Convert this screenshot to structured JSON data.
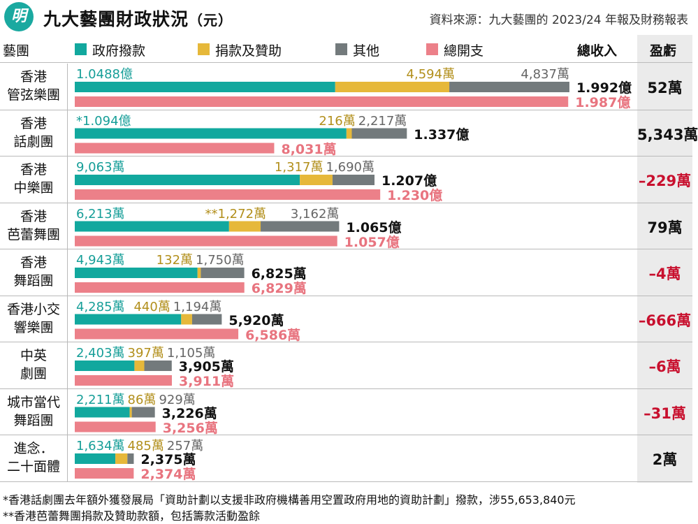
{
  "header": {
    "logo_glyph": "明",
    "title": "九大藝團財政狀況",
    "title_unit": "（元）",
    "source": "資料來源：九大藝團的 2023/24 年報及財務報表"
  },
  "columns": {
    "troupe": "藝團",
    "income_total": "總收入",
    "balance": "盈虧"
  },
  "colors": {
    "gov": "#12a89e",
    "don": "#e6b83a",
    "oth": "#737a7c",
    "exp": "#ec8089",
    "negative": "#c8102e"
  },
  "chart_data": {
    "type": "bar",
    "unit": "元",
    "legend": [
      {
        "key": "gov",
        "name": "政府撥款"
      },
      {
        "key": "don",
        "name": "捐款及贊助"
      },
      {
        "key": "oth",
        "name": "其他"
      },
      {
        "key": "exp",
        "name": "總開支"
      }
    ],
    "rows": [
      {
        "name_lines": [
          "香港",
          "管弦樂團"
        ],
        "gov": 104880000,
        "don": 45940000,
        "oth": 48370000,
        "income": 199200000,
        "expense": 198700000,
        "gov_label": "1.0488億",
        "don_label": "4,594萬",
        "oth_label": "4,837萬",
        "income_label": "1.992億",
        "expense_label": "1.987億",
        "balance": "52萬",
        "negative": false
      },
      {
        "name_lines": [
          "香港",
          "話劇團"
        ],
        "gov": 109400000,
        "don": 2160000,
        "oth": 22170000,
        "income": 133700000,
        "expense": 80310000,
        "gov_label": "*1.094億",
        "don_label": "216萬",
        "oth_label": "2,217萬",
        "income_label": "1.337億",
        "expense_label": "8,031萬",
        "balance": "5,343萬",
        "negative": false
      },
      {
        "name_lines": [
          "香港",
          "中樂團"
        ],
        "gov": 90630000,
        "don": 13170000,
        "oth": 16900000,
        "income": 120700000,
        "expense": 123000000,
        "gov_label": "9,063萬",
        "don_label": "1,317萬",
        "oth_label": "1,690萬",
        "income_label": "1.207億",
        "expense_label": "1.230億",
        "balance": "–229萬",
        "negative": true
      },
      {
        "name_lines": [
          "香港",
          "芭蕾舞團"
        ],
        "gov": 62130000,
        "don": 12720000,
        "oth": 31620000,
        "income": 106500000,
        "expense": 105700000,
        "gov_label": "6,213萬",
        "don_label": "**1,272萬",
        "oth_label": "3,162萬",
        "income_label": "1.065億",
        "expense_label": "1.057億",
        "balance": "79萬",
        "negative": false
      },
      {
        "name_lines": [
          "香港",
          "舞蹈團"
        ],
        "gov": 49430000,
        "don": 1320000,
        "oth": 17500000,
        "income": 68250000,
        "expense": 68290000,
        "gov_label": "4,943萬",
        "don_label": "132萬",
        "oth_label": "1,750萬",
        "income_label": "6,825萬",
        "expense_label": "6,829萬",
        "balance": "–4萬",
        "negative": true
      },
      {
        "name_lines": [
          "香港小交",
          "響樂團"
        ],
        "gov": 42850000,
        "don": 4400000,
        "oth": 11940000,
        "income": 59200000,
        "expense": 65860000,
        "gov_label": "4,285萬",
        "don_label": "440萬",
        "oth_label": "1,194萬",
        "income_label": "5,920萬",
        "expense_label": "6,586萬",
        "balance": "–666萬",
        "negative": true
      },
      {
        "name_lines": [
          "中英",
          "劇團"
        ],
        "gov": 24030000,
        "don": 3970000,
        "oth": 11050000,
        "income": 39050000,
        "expense": 39110000,
        "gov_label": "2,403萬",
        "don_label": "397萬",
        "oth_label": "1,105萬",
        "income_label": "3,905萬",
        "expense_label": "3,911萬",
        "balance": "–6萬",
        "negative": true
      },
      {
        "name_lines": [
          "城市當代",
          "舞蹈團"
        ],
        "gov": 22110000,
        "don": 860000,
        "oth": 9290000,
        "income": 32260000,
        "expense": 32560000,
        "gov_label": "2,211萬",
        "don_label": "86萬",
        "oth_label": "929萬",
        "income_label": "3,226萬",
        "expense_label": "3,256萬",
        "balance": "–31萬",
        "negative": true
      },
      {
        "name_lines": [
          "進念．",
          "二十面體"
        ],
        "gov": 16340000,
        "don": 4850000,
        "oth": 2570000,
        "income": 23750000,
        "expense": 23740000,
        "gov_label": "1,634萬",
        "don_label": "485萬",
        "oth_label": "257萬",
        "income_label": "2,375萬",
        "expense_label": "2,374萬",
        "balance": "2萬",
        "negative": false
      }
    ]
  },
  "footnotes": [
    "*香港話劇團去年額外獲發展局「資助計劃以支援非政府機構善用空置政府用地的資助計劃」撥款，涉55,653,840元",
    "**香港芭蕾舞團捐款及贊助款額，包括籌款活動盈餘"
  ]
}
